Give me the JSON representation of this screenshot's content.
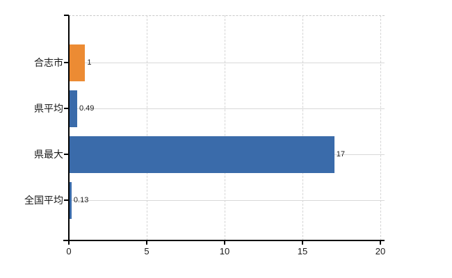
{
  "chart_data": {
    "type": "bar",
    "orientation": "horizontal",
    "title": "",
    "categories": [
      "合志市",
      "県平均",
      "県最大",
      "全国平均"
    ],
    "values": [
      1,
      0.49,
      17,
      0.13
    ],
    "value_labels": [
      "1",
      "0.49",
      "17",
      "0.13"
    ],
    "series": [
      {
        "name": "highlight",
        "indices": [
          0
        ],
        "color": "#EC8B33"
      },
      {
        "name": "default",
        "indices": [
          1,
          2,
          3
        ],
        "color": "#3A6BAA"
      }
    ],
    "bar_colors": [
      "#EC8B33",
      "#3A6BAA",
      "#3A6BAA",
      "#3A6BAA"
    ],
    "xlabel": "",
    "ylabel": "",
    "xlim": [
      0,
      20
    ],
    "xticks": [
      0,
      5,
      10,
      15,
      20
    ],
    "xtick_labels": [
      "0",
      "5",
      "10",
      "15",
      "20"
    ],
    "grid": true,
    "legend_position": "none",
    "colors": {
      "background": "#FFFFFF",
      "axis": "#000000",
      "gridline": "#D8D8D8",
      "dashed_border": "#C9C9C9",
      "text": "#1A1A1A",
      "bar_orange": "#EC8B33",
      "bar_blue": "#3A6BAA"
    }
  }
}
